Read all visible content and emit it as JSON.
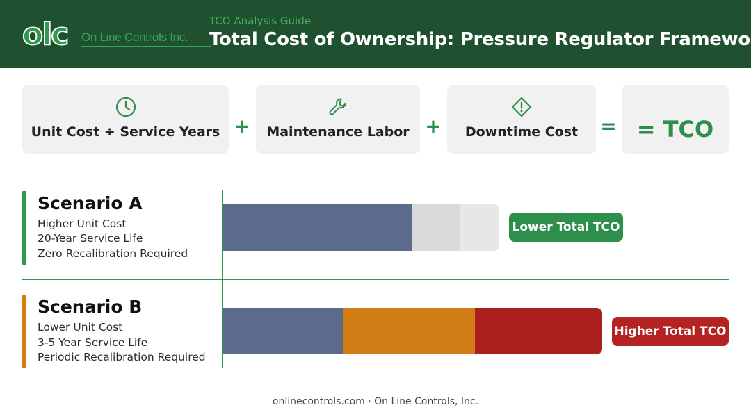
{
  "header": {
    "logo_mark": "olc",
    "company": "On Line Controls Inc.",
    "subtitle": "TCO Analysis Guide",
    "title": "Total Cost of Ownership: Pressure Regulator Framework"
  },
  "formula": {
    "terms": [
      {
        "label": "Unit Cost ÷ Service Years",
        "icon": "clock-icon"
      },
      {
        "label": "Maintenance Labor",
        "icon": "wrench-icon"
      },
      {
        "label": "Downtime Cost",
        "icon": "warning-diamond-icon"
      }
    ],
    "operators": [
      "+",
      "+",
      "="
    ],
    "result": "= TCO"
  },
  "scenarios": [
    {
      "title": "Scenario A",
      "lines": [
        "Higher Unit Cost",
        "20-Year Service Life",
        "Zero Recalibration Required"
      ],
      "badge": "Lower Total TCO",
      "accent_color": "#2f9a4a",
      "badge_color": "#2e8f4c",
      "segments": [
        {
          "value": 272,
          "color": "#5a6b8c"
        },
        {
          "value": 68,
          "color": "#d9d9d9"
        },
        {
          "value": 57,
          "color": "#e6e7e9"
        }
      ]
    },
    {
      "title": "Scenario B",
      "lines": [
        "Lower Unit Cost",
        "3-5 Year Service Life",
        "Periodic Recalibration Required"
      ],
      "badge": "Higher Total TCO",
      "accent_color": "#d4800e",
      "badge_color": "#b52222",
      "segments": [
        {
          "value": 172,
          "color": "#5a6b8c"
        },
        {
          "value": 190,
          "color": "#d17c14"
        },
        {
          "value": 183,
          "color": "#ab1f1f"
        }
      ]
    }
  ],
  "footer": "onlinecontrols.com · On Line Controls, Inc."
}
